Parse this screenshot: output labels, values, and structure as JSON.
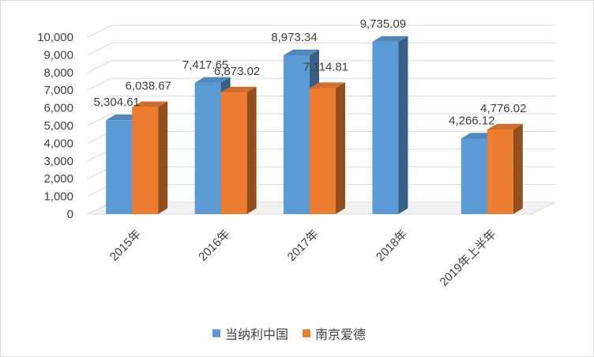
{
  "chart_data": {
    "type": "bar",
    "categories": [
      "2015年",
      "2016年",
      "2017年",
      "2018年",
      "2019年上半年"
    ],
    "series": [
      {
        "name": "当纳利中国",
        "values": [
          5304.61,
          7417.65,
          8973.34,
          9735.09,
          4266.12
        ],
        "labels": [
          "5,304.61",
          "7,417.65",
          "8,973.34",
          "9,735.09",
          "4,266.12"
        ]
      },
      {
        "name": "南京爱德",
        "values": [
          6038.67,
          6873.02,
          7114.81,
          null,
          4776.02
        ],
        "labels": [
          "6,038.67",
          "6,873.02",
          "7,114.81",
          "",
          "4,776.02"
        ]
      }
    ],
    "yticks": [
      "0",
      "1,000",
      "2,000",
      "3,000",
      "4,000",
      "5,000",
      "6,000",
      "7,000",
      "8,000",
      "9,000",
      "10,000"
    ],
    "ylim": [
      0,
      10000
    ],
    "grid": true,
    "legend_position": "bottom",
    "colors": {
      "series_0": "#5b9bd5",
      "series_1": "#ed7d31"
    },
    "style": "3d-column"
  }
}
